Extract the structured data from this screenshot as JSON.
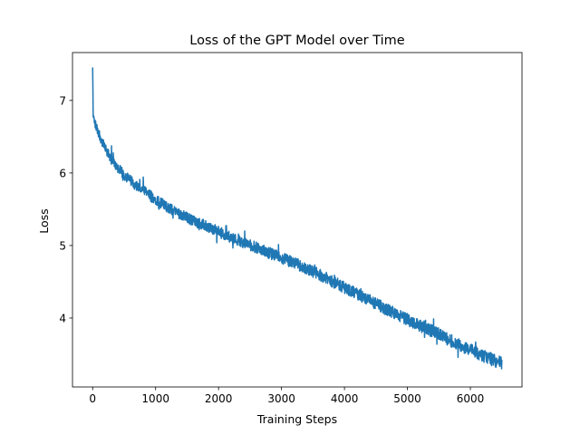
{
  "chart_data": {
    "type": "line",
    "title": "Loss of the GPT Model over Time",
    "xlabel": "Training Steps",
    "ylabel": "Loss",
    "xlim": [
      -320,
      6820
    ],
    "ylim": [
      3.05,
      7.66
    ],
    "xticks": [
      {
        "value": 0,
        "label": "0"
      },
      {
        "value": 1000,
        "label": "1000"
      },
      {
        "value": 2000,
        "label": "2000"
      },
      {
        "value": 3000,
        "label": "3000"
      },
      {
        "value": 4000,
        "label": "4000"
      },
      {
        "value": 5000,
        "label": "5000"
      },
      {
        "value": 6000,
        "label": "6000"
      }
    ],
    "yticks": [
      {
        "value": 4,
        "label": "4"
      },
      {
        "value": 5,
        "label": "5"
      },
      {
        "value": 6,
        "label": "6"
      },
      {
        "value": 7,
        "label": "7"
      }
    ],
    "grid": false,
    "color": "#1f77b4",
    "series": [
      {
        "name": "",
        "x": [
          0,
          10,
          25,
          50,
          100,
          150,
          200,
          300,
          400,
          500,
          600,
          700,
          800,
          900,
          1000,
          1200,
          1400,
          1600,
          1800,
          2000,
          2200,
          2400,
          2600,
          2800,
          3000,
          3200,
          3400,
          3600,
          3800,
          4000,
          4200,
          4400,
          4600,
          4800,
          5000,
          5200,
          5400,
          5600,
          5800,
          6000,
          6200,
          6400,
          6500
        ],
        "y": [
          7.45,
          6.8,
          6.72,
          6.65,
          6.55,
          6.43,
          6.33,
          6.18,
          6.07,
          5.97,
          5.9,
          5.82,
          5.76,
          5.7,
          5.64,
          5.52,
          5.43,
          5.34,
          5.27,
          5.19,
          5.11,
          5.04,
          4.97,
          4.9,
          4.83,
          4.76,
          4.68,
          4.6,
          4.51,
          4.42,
          4.33,
          4.24,
          4.15,
          4.06,
          3.98,
          3.9,
          3.82,
          3.73,
          3.64,
          3.56,
          3.48,
          3.41,
          3.38
        ]
      }
    ]
  }
}
